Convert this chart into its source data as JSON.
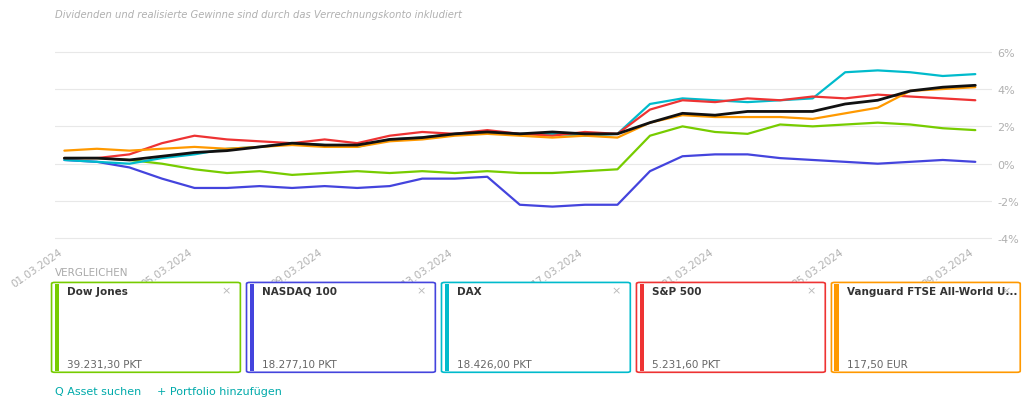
{
  "subtitle": "Dividenden und realisierte Gewinne sind durch das Verrechnungskonto inkludiert",
  "subtitle_color": "#b0b0b0",
  "background_color": "#ffffff",
  "grid_color": "#e8e8e8",
  "tick_label_color": "#b0b0b0",
  "ylim": [
    -4.2,
    6.5
  ],
  "yticks": [
    -4,
    -2,
    0,
    2,
    4,
    6
  ],
  "ytick_labels": [
    "-4%",
    "-2%",
    "0%",
    "2%",
    "4%",
    "6%"
  ],
  "xtick_labels": [
    "01.03.2024",
    "05.03.2024",
    "09.03.2024",
    "13.03.2024",
    "17.03.2024",
    "21.03.2024",
    "25.03.2024",
    "29.03.2024"
  ],
  "xtick_positions": [
    0,
    4,
    8,
    12,
    16,
    20,
    24,
    28
  ],
  "xlim": [
    -0.3,
    28.5
  ],
  "vergleichen_label": "VERGLEICHEN",
  "vergleichen_color": "#aaaaaa",
  "asset_suchen": "Q Asset suchen",
  "portfolio_hinzufuegen": "+ Portfolio hinzufügen",
  "bottom_color": "#00aaaa",
  "legend_items": [
    {
      "name": "Dow Jones",
      "value": "39.231,30 PKT",
      "color": "#77cc00",
      "border_color": "#77cc00"
    },
    {
      "name": "NASDAQ 100",
      "value": "18.277,10 PKT",
      "color": "#4444dd",
      "border_color": "#4444dd"
    },
    {
      "name": "DAX",
      "value": "18.426,00 PKT",
      "color": "#00bbcc",
      "border_color": "#00bbcc"
    },
    {
      "name": "S&P 500",
      "value": "5.231,60 PKT",
      "color": "#ee3333",
      "border_color": "#ee3333"
    },
    {
      "name": "Vanguard FTSE All-World U...",
      "value": "117,50 EUR",
      "color": "#ff9900",
      "border_color": "#ff9900"
    }
  ],
  "series": {
    "dow_jones": {
      "color": "#77cc00",
      "lw": 1.6,
      "y": [
        0.3,
        0.3,
        0.2,
        0.0,
        -0.3,
        -0.5,
        -0.4,
        -0.6,
        -0.5,
        -0.4,
        -0.5,
        -0.4,
        -0.5,
        -0.4,
        -0.5,
        -0.5,
        -0.4,
        -0.3,
        1.5,
        2.0,
        1.7,
        1.6,
        2.1,
        2.0,
        2.1,
        2.2,
        2.1,
        1.9,
        1.8
      ]
    },
    "nasdaq100": {
      "color": "#4444dd",
      "lw": 1.6,
      "y": [
        0.2,
        0.1,
        -0.2,
        -0.8,
        -1.3,
        -1.3,
        -1.2,
        -1.3,
        -1.2,
        -1.3,
        -1.2,
        -0.8,
        -0.8,
        -0.7,
        -2.2,
        -2.3,
        -2.2,
        -2.2,
        -0.4,
        0.4,
        0.5,
        0.5,
        0.3,
        0.2,
        0.1,
        0.0,
        0.1,
        0.2,
        0.1
      ]
    },
    "dax": {
      "color": "#00bbcc",
      "lw": 1.6,
      "y": [
        0.2,
        0.1,
        0.0,
        0.3,
        0.5,
        0.8,
        0.9,
        1.1,
        1.0,
        0.9,
        1.3,
        1.4,
        1.6,
        1.7,
        1.6,
        1.6,
        1.5,
        1.6,
        3.2,
        3.5,
        3.4,
        3.3,
        3.4,
        3.5,
        4.9,
        5.0,
        4.9,
        4.7,
        4.8
      ]
    },
    "sp500": {
      "color": "#ee3333",
      "lw": 1.6,
      "y": [
        0.3,
        0.3,
        0.5,
        1.1,
        1.5,
        1.3,
        1.2,
        1.1,
        1.3,
        1.1,
        1.5,
        1.7,
        1.6,
        1.8,
        1.6,
        1.5,
        1.7,
        1.6,
        2.9,
        3.4,
        3.3,
        3.5,
        3.4,
        3.6,
        3.5,
        3.7,
        3.6,
        3.5,
        3.4
      ]
    },
    "vanguard": {
      "color": "#ff9900",
      "lw": 1.6,
      "y": [
        0.7,
        0.8,
        0.7,
        0.8,
        0.9,
        0.8,
        0.9,
        1.0,
        0.9,
        0.9,
        1.2,
        1.3,
        1.5,
        1.6,
        1.5,
        1.4,
        1.5,
        1.4,
        2.2,
        2.6,
        2.5,
        2.5,
        2.5,
        2.4,
        2.7,
        3.0,
        3.9,
        4.0,
        4.1
      ]
    },
    "portfolio": {
      "color": "#111111",
      "lw": 2.0,
      "y": [
        0.3,
        0.3,
        0.2,
        0.4,
        0.6,
        0.7,
        0.9,
        1.1,
        1.0,
        1.0,
        1.3,
        1.4,
        1.6,
        1.7,
        1.6,
        1.7,
        1.6,
        1.6,
        2.2,
        2.7,
        2.6,
        2.8,
        2.8,
        2.8,
        3.2,
        3.4,
        3.9,
        4.1,
        4.2
      ]
    }
  }
}
